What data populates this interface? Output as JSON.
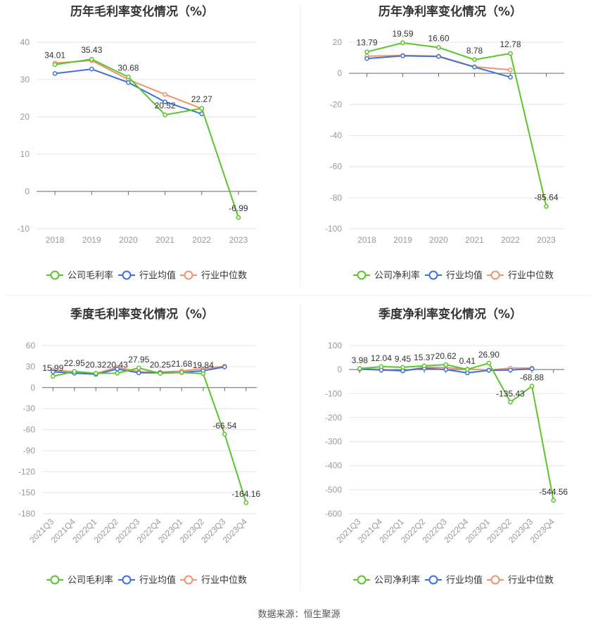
{
  "source_text": "数据来源：恒生聚源",
  "colors": {
    "company": "#5ac52c",
    "industry_avg": "#3f72d6",
    "industry_median": "#f0946c",
    "grid": "#e6e6e6",
    "axis": "#999999",
    "tick_text": "#999999",
    "label_text": "#333333"
  },
  "chart_data": [
    {
      "type": "line",
      "title": "历年毛利率变化情况（%）",
      "categories": [
        "2018",
        "2019",
        "2020",
        "2021",
        "2022",
        "2023"
      ],
      "ylim": [
        -10,
        40
      ],
      "yticks": [
        40,
        30,
        20,
        10,
        0,
        -10
      ],
      "grid": true,
      "legend_position": "bottom",
      "series": [
        {
          "name": "公司毛利率",
          "values": [
            34.01,
            35.43,
            30.68,
            20.52,
            22.27,
            -6.99
          ]
        },
        {
          "name": "行业均值",
          "values": [
            31.6,
            32.8,
            29.2,
            24.0,
            20.8,
            null
          ]
        },
        {
          "name": "行业中位数",
          "values": [
            34.4,
            35.1,
            30.0,
            26.0,
            22.2,
            null
          ]
        }
      ],
      "data_labels": [
        "34.01",
        "35.43",
        "30.68",
        "20.52",
        "22.27",
        "-6.99"
      ]
    },
    {
      "type": "line",
      "title": "历年净利率变化情况（%）",
      "categories": [
        "2018",
        "2019",
        "2020",
        "2021",
        "2022",
        "2023"
      ],
      "ylim": [
        -100,
        20
      ],
      "yticks": [
        20,
        0,
        -20,
        -40,
        -60,
        -80,
        -100
      ],
      "grid": true,
      "legend_position": "bottom",
      "series": [
        {
          "name": "公司净利率",
          "values": [
            13.79,
            19.59,
            16.6,
            8.78,
            12.78,
            -85.64
          ]
        },
        {
          "name": "行业均值",
          "values": [
            9.5,
            11.2,
            10.8,
            4.0,
            -2.5,
            null
          ]
        },
        {
          "name": "行业中位数",
          "values": [
            11.0,
            11.5,
            11.0,
            4.2,
            2.2,
            null
          ]
        }
      ],
      "data_labels": [
        "13.79",
        "19.59",
        "16.60",
        "8.78",
        "12.78",
        "-85.64"
      ]
    },
    {
      "type": "line",
      "title": "季度毛利率变化情况（%）",
      "categories": [
        "2021Q3",
        "2021Q4",
        "2022Q1",
        "2022Q2",
        "2022Q3",
        "2022Q4",
        "2023Q1",
        "2023Q2",
        "2023Q3",
        "2023Q4"
      ],
      "ylim": [
        -180,
        60
      ],
      "yticks": [
        60,
        30,
        0,
        -30,
        -60,
        -90,
        -120,
        -150,
        -180
      ],
      "grid": true,
      "legend_position": "bottom",
      "series": [
        {
          "name": "公司毛利率",
          "values": [
            15.99,
            22.95,
            20.32,
            20.43,
            27.95,
            20.25,
            21.68,
            19.84,
            -66.54,
            -164.16
          ]
        },
        {
          "name": "行业均值",
          "values": [
            22.5,
            20.5,
            19.0,
            26.5,
            21.0,
            21.0,
            21.5,
            24.0,
            29.5,
            null
          ]
        },
        {
          "name": "行业中位数",
          "values": [
            25.0,
            22.5,
            20.0,
            29.0,
            22.5,
            22.0,
            23.5,
            27.0,
            30.5,
            null
          ]
        }
      ],
      "data_labels": [
        "15.99",
        "22.95",
        "20.32",
        "20.43",
        "27.95",
        "20.25",
        "21.68",
        "19.84",
        "-66.54",
        "-164.16"
      ]
    },
    {
      "type": "line",
      "title": "季度净利率变化情况（%）",
      "categories": [
        "2021Q3",
        "2021Q4",
        "2022Q1",
        "2022Q2",
        "2022Q3",
        "2022Q4",
        "2023Q1",
        "2023Q2",
        "2023Q3",
        "2023Q4"
      ],
      "ylim": [
        -600,
        100
      ],
      "yticks": [
        100,
        0,
        -100,
        -200,
        -300,
        -400,
        -500,
        -600
      ],
      "grid": true,
      "legend_position": "bottom",
      "series": [
        {
          "name": "公司净利率",
          "values": [
            3.98,
            12.04,
            9.45,
            15.37,
            20.62,
            0.41,
            26.9,
            -135.43,
            -68.88,
            -544.56
          ]
        },
        {
          "name": "行业均值",
          "values": [
            2.0,
            -2.0,
            -5.0,
            5.0,
            0.0,
            -14.0,
            -3.0,
            -2.0,
            3.0,
            null
          ]
        },
        {
          "name": "行业中位数",
          "values": [
            4.0,
            1.0,
            -6.0,
            10.0,
            8.0,
            2.0,
            -2.0,
            6.0,
            6.0,
            null
          ]
        }
      ],
      "data_labels": [
        "3.98",
        "12.04",
        "9.45",
        "15.37",
        "20.62",
        "0.41",
        "26.90",
        "-135.43",
        "-68.88",
        "-544.56"
      ]
    }
  ]
}
